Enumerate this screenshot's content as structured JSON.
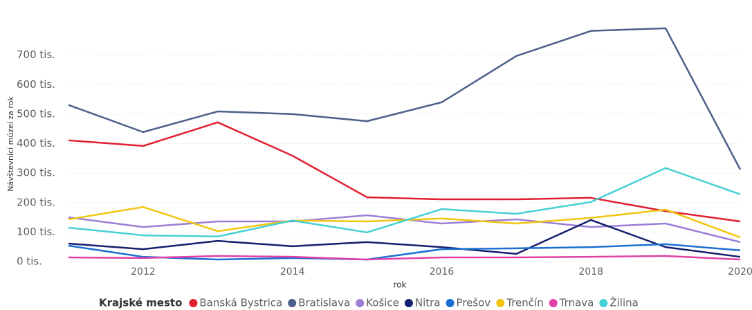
{
  "chart_data": {
    "type": "line",
    "x_label": "rok",
    "y_label": "Návštevníci múzeí za rok",
    "legend_title": "Krajské mesto",
    "x": [
      2011,
      2012,
      2013,
      2014,
      2015,
      2016,
      2017,
      2018,
      2019,
      2020
    ],
    "xlim": [
      2011,
      2020
    ],
    "xticks": [
      2012,
      2014,
      2016,
      2018,
      2020
    ],
    "ylim": [
      0,
      800000
    ],
    "yticks": [
      {
        "value": 0,
        "label": "0 tis."
      },
      {
        "value": 100000,
        "label": "100 tis."
      },
      {
        "value": 200000,
        "label": "200 tis."
      },
      {
        "value": 300000,
        "label": "300 tis."
      },
      {
        "value": 400000,
        "label": "400 tis."
      },
      {
        "value": 500000,
        "label": "500 tis."
      },
      {
        "value": 600000,
        "label": "600 tis."
      },
      {
        "value": 700000,
        "label": "700 tis."
      }
    ],
    "grid": true,
    "legend": "bottom",
    "series": [
      {
        "name": "Banská Bystrica",
        "color": "#e0202e",
        "values": [
          411000,
          392000,
          472000,
          359000,
          218000,
          211000,
          211000,
          216000,
          171000,
          136000
        ]
      },
      {
        "name": "Bratislava",
        "color": "#4d5f8a",
        "values": [
          531000,
          439000,
          509000,
          500000,
          476000,
          540000,
          697000,
          782000,
          791000,
          312000
        ]
      },
      {
        "name": "Košice",
        "color": "#9b7fd6",
        "values": [
          150000,
          117000,
          136000,
          136000,
          157000,
          129000,
          143000,
          117000,
          129000,
          66000
        ]
      },
      {
        "name": "Nitra",
        "color": "#141e6e",
        "values": [
          61000,
          42000,
          70000,
          52000,
          66000,
          49000,
          26000,
          141000,
          49000,
          16000
        ]
      },
      {
        "name": "Prešov",
        "color": "#1a6fd0",
        "values": [
          54000,
          16000,
          7000,
          12000,
          7000,
          42000,
          45000,
          49000,
          59000,
          38000
        ]
      },
      {
        "name": "Trenčín",
        "color": "#f2c511",
        "values": [
          143000,
          185000,
          103000,
          139000,
          136000,
          146000,
          129000,
          148000,
          176000,
          82000
        ]
      },
      {
        "name": "Trnava",
        "color": "#e040a8",
        "values": [
          14000,
          12000,
          19000,
          16000,
          7000,
          14000,
          14000,
          16000,
          19000,
          7000
        ]
      },
      {
        "name": "Žilina",
        "color": "#45d0d6",
        "values": [
          115000,
          89000,
          85000,
          139000,
          99000,
          178000,
          162000,
          202000,
          317000,
          228000
        ]
      }
    ]
  }
}
